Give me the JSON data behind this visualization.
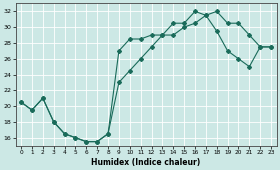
{
  "xlabel": "Humidex (Indice chaleur)",
  "xlim": [
    -0.5,
    23.5
  ],
  "ylim": [
    15.0,
    33.0
  ],
  "yticks": [
    16,
    18,
    20,
    22,
    24,
    26,
    28,
    30,
    32
  ],
  "xticks": [
    0,
    1,
    2,
    3,
    4,
    5,
    6,
    7,
    8,
    9,
    10,
    11,
    12,
    13,
    14,
    15,
    16,
    17,
    18,
    19,
    20,
    21,
    22,
    23
  ],
  "bg_color": "#cce8e5",
  "line_color": "#1a6b5a",
  "grid_color": "#ffffff",
  "upper_x": [
    0,
    1,
    2,
    3,
    4,
    5,
    6,
    7,
    8,
    9,
    10,
    11,
    12,
    13,
    14,
    15,
    16,
    17,
    18,
    19,
    20,
    21,
    22,
    23
  ],
  "upper_y": [
    20.5,
    19.5,
    21.0,
    18.0,
    16.5,
    16.0,
    15.5,
    15.5,
    16.5,
    27.0,
    28.5,
    28.5,
    29.0,
    29.0,
    30.5,
    30.5,
    32.0,
    31.5,
    32.0,
    30.5,
    30.5,
    29.0,
    27.5,
    27.5
  ],
  "lower_x": [
    0,
    1,
    2,
    3,
    4,
    5,
    6,
    7,
    8,
    9,
    10,
    11,
    12,
    13,
    14,
    15,
    16,
    17,
    18,
    19,
    20,
    21,
    22,
    23
  ],
  "lower_y": [
    20.5,
    19.5,
    21.0,
    18.0,
    16.5,
    16.0,
    15.5,
    15.5,
    16.5,
    23.0,
    24.5,
    26.0,
    27.5,
    29.0,
    29.0,
    30.0,
    30.5,
    31.5,
    29.5,
    27.0,
    26.0,
    25.0,
    27.5,
    27.5
  ]
}
